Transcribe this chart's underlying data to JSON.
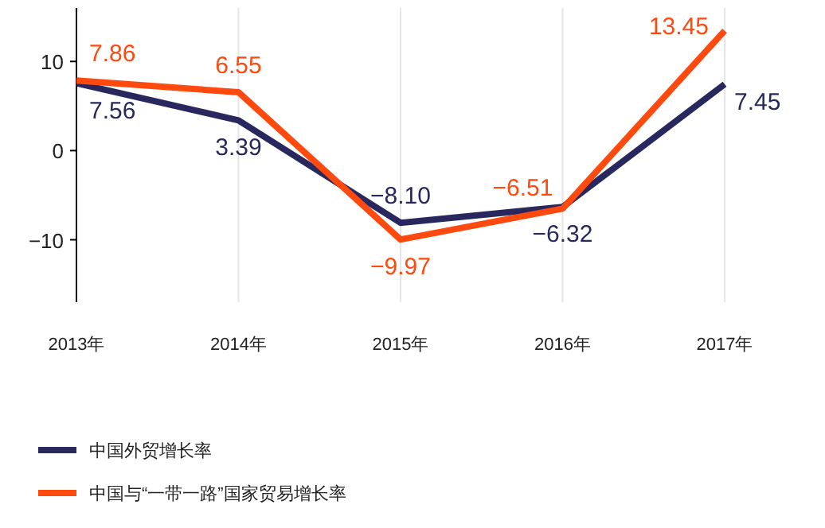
{
  "chart_data": {
    "type": "line",
    "categories": [
      "2013年",
      "2014年",
      "2015年",
      "2016年",
      "2017年"
    ],
    "series": [
      {
        "name": "中国外贸增长率",
        "color": "#28285e",
        "values": [
          7.56,
          3.39,
          -8.1,
          -6.32,
          7.45
        ],
        "value_labels": [
          "7.56",
          "3.39",
          "−8.10",
          "−6.32",
          "7.45"
        ]
      },
      {
        "name": "中国与“一带一路”国家贸易增长率",
        "color": "#fe4a0f",
        "values": [
          7.86,
          6.55,
          -9.97,
          -6.51,
          13.45
        ],
        "value_labels": [
          "7.86",
          "6.55",
          "−9.97",
          "−6.51",
          "13.45"
        ]
      }
    ],
    "ylim": [
      -17,
      16
    ],
    "yticks": [
      -10,
      0,
      10
    ],
    "grid": "x",
    "legend": "bottom left",
    "marker": "none",
    "line_style": "solid"
  }
}
